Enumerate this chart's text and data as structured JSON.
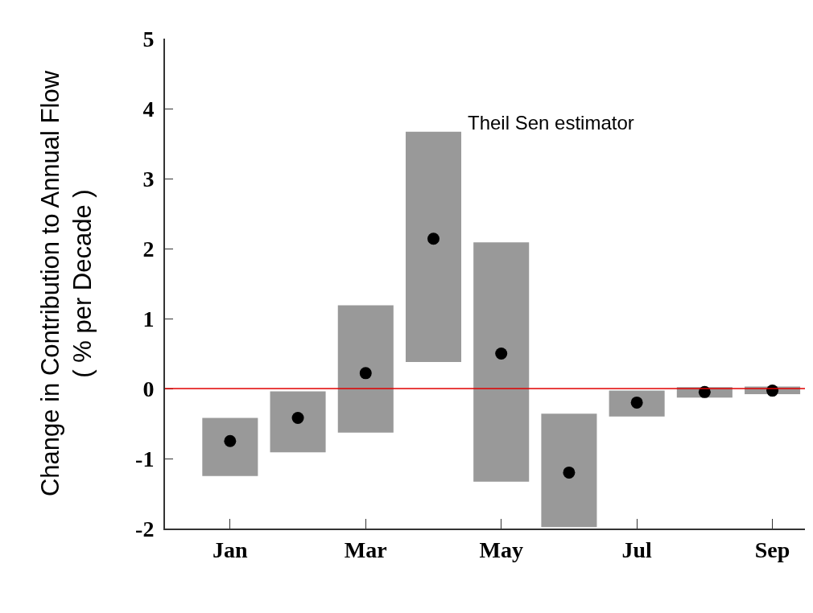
{
  "chart_data": {
    "type": "bar",
    "ylabel": "Change in Contribution to Annual Flow\n( % per Decade )",
    "categories": [
      "Jan",
      null,
      "Mar",
      null,
      "May",
      null,
      "Jul",
      null,
      "Sep"
    ],
    "series": [
      {
        "color": "#999999",
        "base": [
          -1.25,
          -0.91,
          -0.63,
          0.38,
          -1.33,
          -1.98,
          -0.4,
          -0.13,
          -0.08
        ],
        "values": [
          0.83,
          0.87,
          1.82,
          3.29,
          3.42,
          1.62,
          0.37,
          0.15,
          0.11
        ]
      },
      {
        "type": "scatter",
        "color": "#000000",
        "marker": "circle",
        "values": [
          -0.75,
          -0.42,
          0.22,
          2.14,
          0.5,
          -1.2,
          -0.2,
          -0.05,
          -0.03
        ]
      }
    ],
    "ylim": [
      -2,
      5
    ],
    "yticks": [
      -2,
      -1,
      0,
      1,
      2,
      3,
      4,
      5
    ],
    "ref_lines": [
      {
        "axis": "y",
        "value": 0,
        "color": "#e00000"
      }
    ],
    "annotations": [
      "Theil Sen estimator"
    ],
    "grid": false,
    "legend": false
  }
}
